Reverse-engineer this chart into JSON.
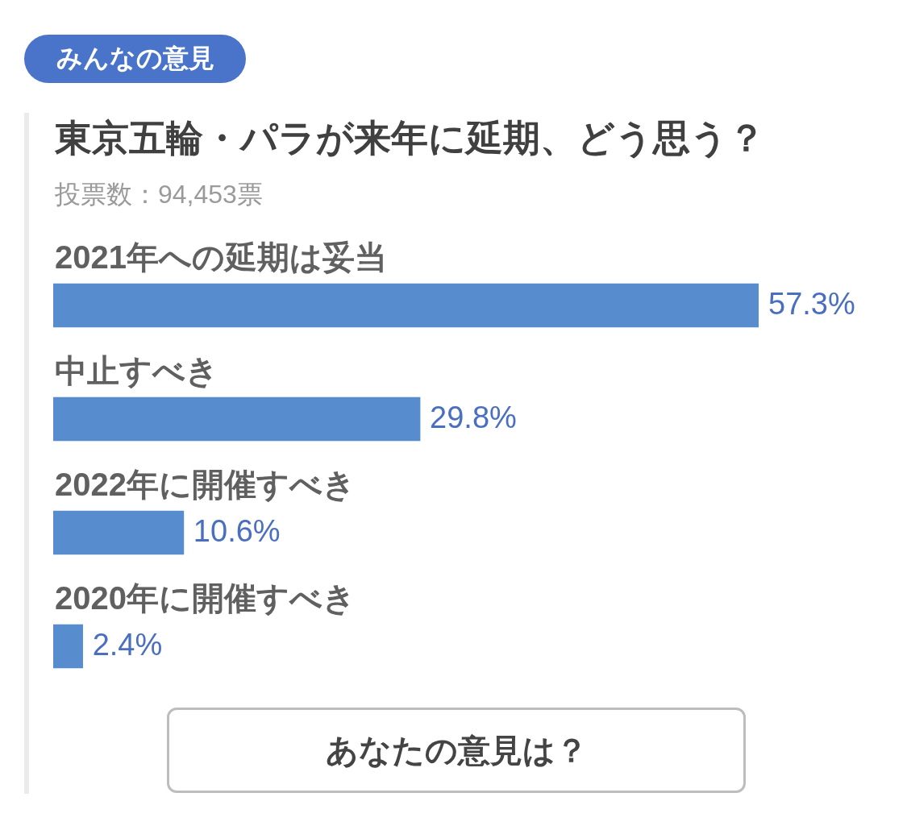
{
  "chart_data": {
    "type": "bar",
    "orientation": "horizontal",
    "title": "東京五輪・パラが来年に延期、どう思う？",
    "subtitle": "投票数：94,453票",
    "annotations": [
      "みんなの意見",
      "あなたの意見は？"
    ],
    "categories": [
      "2021年への延期は妥当",
      "中止すべき",
      "2022年に開催すべき",
      "2020年に開催すべき"
    ],
    "values": [
      57.3,
      29.8,
      10.6,
      2.4
    ],
    "value_labels": [
      "57.3%",
      "29.8%",
      "10.6%",
      "2.4%"
    ],
    "color": "#578dcf",
    "xlim": [
      0,
      57.3
    ],
    "tick_labels": "y"
  }
}
